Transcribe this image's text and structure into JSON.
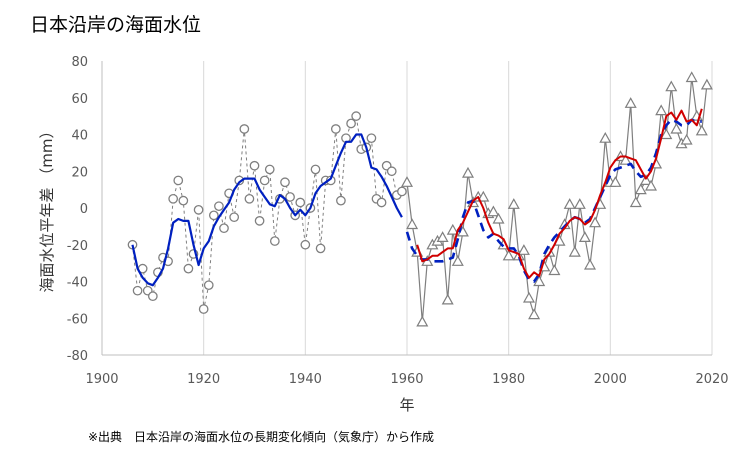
{
  "page": {
    "title": "日本沿岸の海面水位",
    "source": "※出典　日本沿岸の海面水位の長期変化傾向（気象庁）から作成"
  },
  "chart_data": {
    "type": "line",
    "title": "日本沿岸の海面水位",
    "xlabel": "年",
    "ylabel": "海面水位平年差 （mm）",
    "xlim": [
      1900,
      2020
    ],
    "ylim": [
      -80,
      80
    ],
    "x_ticks": [
      1900,
      1920,
      1940,
      1960,
      1980,
      2000,
      2020
    ],
    "y_ticks": [
      -80,
      -60,
      -40,
      -20,
      0,
      20,
      40,
      60,
      80
    ],
    "grid": "vertical",
    "legend": "none",
    "colors": {
      "circle_series": "#7f7f7f",
      "triangle_series": "#7f7f7f",
      "moving_average_1906_1959": "#0020c0",
      "moving_average_dashed": "#0020c0",
      "moving_average_red": "#d00000"
    },
    "series": [
      {
        "marker": "circle",
        "line": "dashed",
        "points": [
          [
            1906,
            -20
          ],
          [
            1907,
            -45
          ],
          [
            1908,
            -33
          ],
          [
            1909,
            -45
          ],
          [
            1910,
            -48
          ],
          [
            1911,
            -35
          ],
          [
            1912,
            -27
          ],
          [
            1913,
            -29
          ],
          [
            1914,
            5
          ],
          [
            1915,
            15
          ],
          [
            1916,
            4
          ],
          [
            1917,
            -33
          ],
          [
            1918,
            -25
          ],
          [
            1919,
            -1
          ],
          [
            1920,
            -55
          ],
          [
            1921,
            -42
          ],
          [
            1922,
            -4
          ],
          [
            1923,
            1
          ],
          [
            1924,
            -11
          ],
          [
            1925,
            8
          ],
          [
            1926,
            -5
          ],
          [
            1927,
            15
          ],
          [
            1928,
            43
          ],
          [
            1929,
            5
          ],
          [
            1930,
            23
          ],
          [
            1931,
            -7
          ],
          [
            1932,
            15
          ],
          [
            1933,
            21
          ],
          [
            1934,
            -18
          ],
          [
            1935,
            5
          ],
          [
            1936,
            14
          ],
          [
            1937,
            6
          ],
          [
            1938,
            -4
          ],
          [
            1939,
            3
          ],
          [
            1940,
            -20
          ],
          [
            1941,
            0
          ],
          [
            1942,
            21
          ],
          [
            1943,
            -22
          ],
          [
            1944,
            15
          ],
          [
            1945,
            15
          ],
          [
            1946,
            43
          ],
          [
            1947,
            4
          ],
          [
            1948,
            38
          ],
          [
            1949,
            46
          ],
          [
            1950,
            50
          ],
          [
            1951,
            32
          ],
          [
            1952,
            33
          ],
          [
            1953,
            38
          ],
          [
            1954,
            5
          ],
          [
            1955,
            3
          ],
          [
            1956,
            23
          ],
          [
            1957,
            20
          ],
          [
            1958,
            7
          ],
          [
            1959,
            9
          ]
        ]
      },
      {
        "marker": "triangle",
        "line": "solid",
        "points": [
          [
            1960,
            14
          ],
          [
            1961,
            -9
          ],
          [
            1962,
            -24
          ],
          [
            1963,
            -62
          ],
          [
            1964,
            -29
          ],
          [
            1965,
            -20
          ],
          [
            1966,
            -18
          ],
          [
            1967,
            -16
          ],
          [
            1968,
            -50
          ],
          [
            1969,
            -12
          ],
          [
            1970,
            -29
          ],
          [
            1971,
            -13
          ],
          [
            1972,
            19
          ],
          [
            1973,
            3
          ],
          [
            1974,
            6
          ],
          [
            1975,
            6
          ],
          [
            1976,
            -3
          ],
          [
            1977,
            -2
          ],
          [
            1978,
            -6
          ],
          [
            1979,
            -20
          ],
          [
            1980,
            -26
          ],
          [
            1981,
            2
          ],
          [
            1982,
            -26
          ],
          [
            1983,
            -23
          ],
          [
            1984,
            -49
          ],
          [
            1985,
            -58
          ],
          [
            1986,
            -40
          ],
          [
            1987,
            -32
          ],
          [
            1988,
            -24
          ],
          [
            1989,
            -34
          ],
          [
            1990,
            -18
          ],
          [
            1991,
            -9
          ],
          [
            1992,
            2
          ],
          [
            1993,
            -24
          ],
          [
            1994,
            2
          ],
          [
            1995,
            -16
          ],
          [
            1996,
            -31
          ],
          [
            1997,
            -8
          ],
          [
            1998,
            2
          ],
          [
            1999,
            38
          ],
          [
            2000,
            14
          ],
          [
            2001,
            14
          ],
          [
            2002,
            28
          ],
          [
            2003,
            26
          ],
          [
            2004,
            57
          ],
          [
            2005,
            3
          ],
          [
            2006,
            10
          ],
          [
            2007,
            15
          ],
          [
            2008,
            12
          ],
          [
            2009,
            24
          ],
          [
            2010,
            53
          ],
          [
            2011,
            40
          ],
          [
            2012,
            66
          ],
          [
            2013,
            43
          ],
          [
            2014,
            35
          ],
          [
            2015,
            37
          ],
          [
            2016,
            71
          ],
          [
            2017,
            50
          ],
          [
            2018,
            42
          ],
          [
            2019,
            67
          ]
        ]
      },
      {
        "marker": "none",
        "line": "solid-blue",
        "points": [
          [
            1906,
            -20
          ],
          [
            1907,
            -33
          ],
          [
            1908,
            -38
          ],
          [
            1909,
            -41
          ],
          [
            1910,
            -42
          ],
          [
            1911,
            -38
          ],
          [
            1912,
            -33
          ],
          [
            1913,
            -22
          ],
          [
            1914,
            -8
          ],
          [
            1915,
            -6
          ],
          [
            1916,
            -7
          ],
          [
            1917,
            -7
          ],
          [
            1918,
            -20
          ],
          [
            1919,
            -31
          ],
          [
            1920,
            -22
          ],
          [
            1921,
            -18
          ],
          [
            1922,
            -10
          ],
          [
            1923,
            -5
          ],
          [
            1924,
            -1
          ],
          [
            1925,
            3
          ],
          [
            1926,
            10
          ],
          [
            1927,
            14
          ],
          [
            1928,
            16
          ],
          [
            1929,
            16
          ],
          [
            1930,
            16
          ],
          [
            1931,
            10
          ],
          [
            1932,
            6
          ],
          [
            1933,
            2
          ],
          [
            1934,
            1
          ],
          [
            1935,
            7
          ],
          [
            1936,
            5
          ],
          [
            1937,
            0
          ],
          [
            1938,
            -4
          ],
          [
            1939,
            -1
          ],
          [
            1940,
            -4
          ],
          [
            1941,
            0
          ],
          [
            1942,
            8
          ],
          [
            1943,
            12
          ],
          [
            1944,
            14
          ],
          [
            1945,
            16
          ],
          [
            1946,
            23
          ],
          [
            1947,
            30
          ],
          [
            1948,
            36
          ],
          [
            1949,
            36
          ],
          [
            1950,
            40
          ],
          [
            1951,
            40
          ],
          [
            1952,
            33
          ],
          [
            1953,
            22
          ],
          [
            1954,
            21
          ],
          [
            1955,
            17
          ],
          [
            1956,
            12
          ],
          [
            1957,
            6
          ],
          [
            1958,
            0
          ],
          [
            1959,
            -5
          ]
        ]
      },
      {
        "marker": "none",
        "line": "dashed-blue",
        "points": [
          [
            1960,
            -13
          ],
          [
            1961,
            -22
          ],
          [
            1962,
            -26
          ],
          [
            1963,
            -28
          ],
          [
            1964,
            -28
          ],
          [
            1965,
            -29
          ],
          [
            1966,
            -29
          ],
          [
            1967,
            -29
          ],
          [
            1968,
            -28
          ],
          [
            1969,
            -27
          ],
          [
            1970,
            -17
          ],
          [
            1971,
            -5
          ],
          [
            1972,
            3
          ],
          [
            1973,
            4
          ],
          [
            1974,
            -4
          ],
          [
            1975,
            -12
          ],
          [
            1976,
            -16
          ],
          [
            1977,
            -14
          ],
          [
            1978,
            -18
          ],
          [
            1979,
            -21
          ],
          [
            1980,
            -22
          ],
          [
            1981,
            -22
          ],
          [
            1982,
            -26
          ],
          [
            1983,
            -34
          ],
          [
            1984,
            -39
          ],
          [
            1985,
            -40
          ],
          [
            1986,
            -36
          ],
          [
            1987,
            -25
          ],
          [
            1988,
            -20
          ],
          [
            1989,
            -16
          ],
          [
            1990,
            -13
          ],
          [
            1991,
            -10
          ],
          [
            1992,
            -7
          ],
          [
            1993,
            -5
          ],
          [
            1994,
            -6
          ],
          [
            1995,
            -8
          ],
          [
            1996,
            -6
          ],
          [
            1997,
            0
          ],
          [
            1998,
            6
          ],
          [
            1999,
            12
          ],
          [
            2000,
            18
          ],
          [
            2001,
            21
          ],
          [
            2002,
            22
          ],
          [
            2003,
            23
          ],
          [
            2004,
            24
          ],
          [
            2005,
            20
          ],
          [
            2006,
            17
          ],
          [
            2007,
            18
          ],
          [
            2008,
            22
          ],
          [
            2009,
            30
          ],
          [
            2010,
            40
          ],
          [
            2011,
            45
          ],
          [
            2012,
            48
          ],
          [
            2013,
            47
          ],
          [
            2014,
            45
          ],
          [
            2015,
            45
          ],
          [
            2016,
            48
          ],
          [
            2017,
            47
          ],
          [
            2018,
            47
          ]
        ]
      },
      {
        "marker": "none",
        "line": "solid-red",
        "points": [
          [
            1962,
            -20
          ],
          [
            1963,
            -29
          ],
          [
            1964,
            -28
          ],
          [
            1965,
            -26
          ],
          [
            1966,
            -26
          ],
          [
            1967,
            -24
          ],
          [
            1968,
            -22
          ],
          [
            1969,
            -22
          ],
          [
            1970,
            -12
          ],
          [
            1971,
            -8
          ],
          [
            1972,
            -2
          ],
          [
            1973,
            4
          ],
          [
            1974,
            6
          ],
          [
            1975,
            0
          ],
          [
            1976,
            -8
          ],
          [
            1977,
            -14
          ],
          [
            1978,
            -15
          ],
          [
            1979,
            -17
          ],
          [
            1980,
            -23
          ],
          [
            1981,
            -24
          ],
          [
            1982,
            -25
          ],
          [
            1983,
            -33
          ],
          [
            1984,
            -38
          ],
          [
            1985,
            -35
          ],
          [
            1986,
            -37
          ],
          [
            1987,
            -28
          ],
          [
            1988,
            -25
          ],
          [
            1989,
            -20
          ],
          [
            1990,
            -14
          ],
          [
            1991,
            -11
          ],
          [
            1992,
            -7
          ],
          [
            1993,
            -5
          ],
          [
            1994,
            -6
          ],
          [
            1995,
            -9
          ],
          [
            1996,
            -7
          ],
          [
            1997,
            -1
          ],
          [
            1998,
            7
          ],
          [
            1999,
            14
          ],
          [
            2000,
            22
          ],
          [
            2001,
            26
          ],
          [
            2002,
            28
          ],
          [
            2003,
            28
          ],
          [
            2004,
            27
          ],
          [
            2005,
            26
          ],
          [
            2006,
            21
          ],
          [
            2007,
            16
          ],
          [
            2008,
            20
          ],
          [
            2009,
            27
          ],
          [
            2010,
            38
          ],
          [
            2011,
            50
          ],
          [
            2012,
            52
          ],
          [
            2013,
            48
          ],
          [
            2014,
            53
          ],
          [
            2015,
            47
          ],
          [
            2016,
            48
          ],
          [
            2017,
            45
          ],
          [
            2018,
            54
          ]
        ]
      }
    ]
  }
}
